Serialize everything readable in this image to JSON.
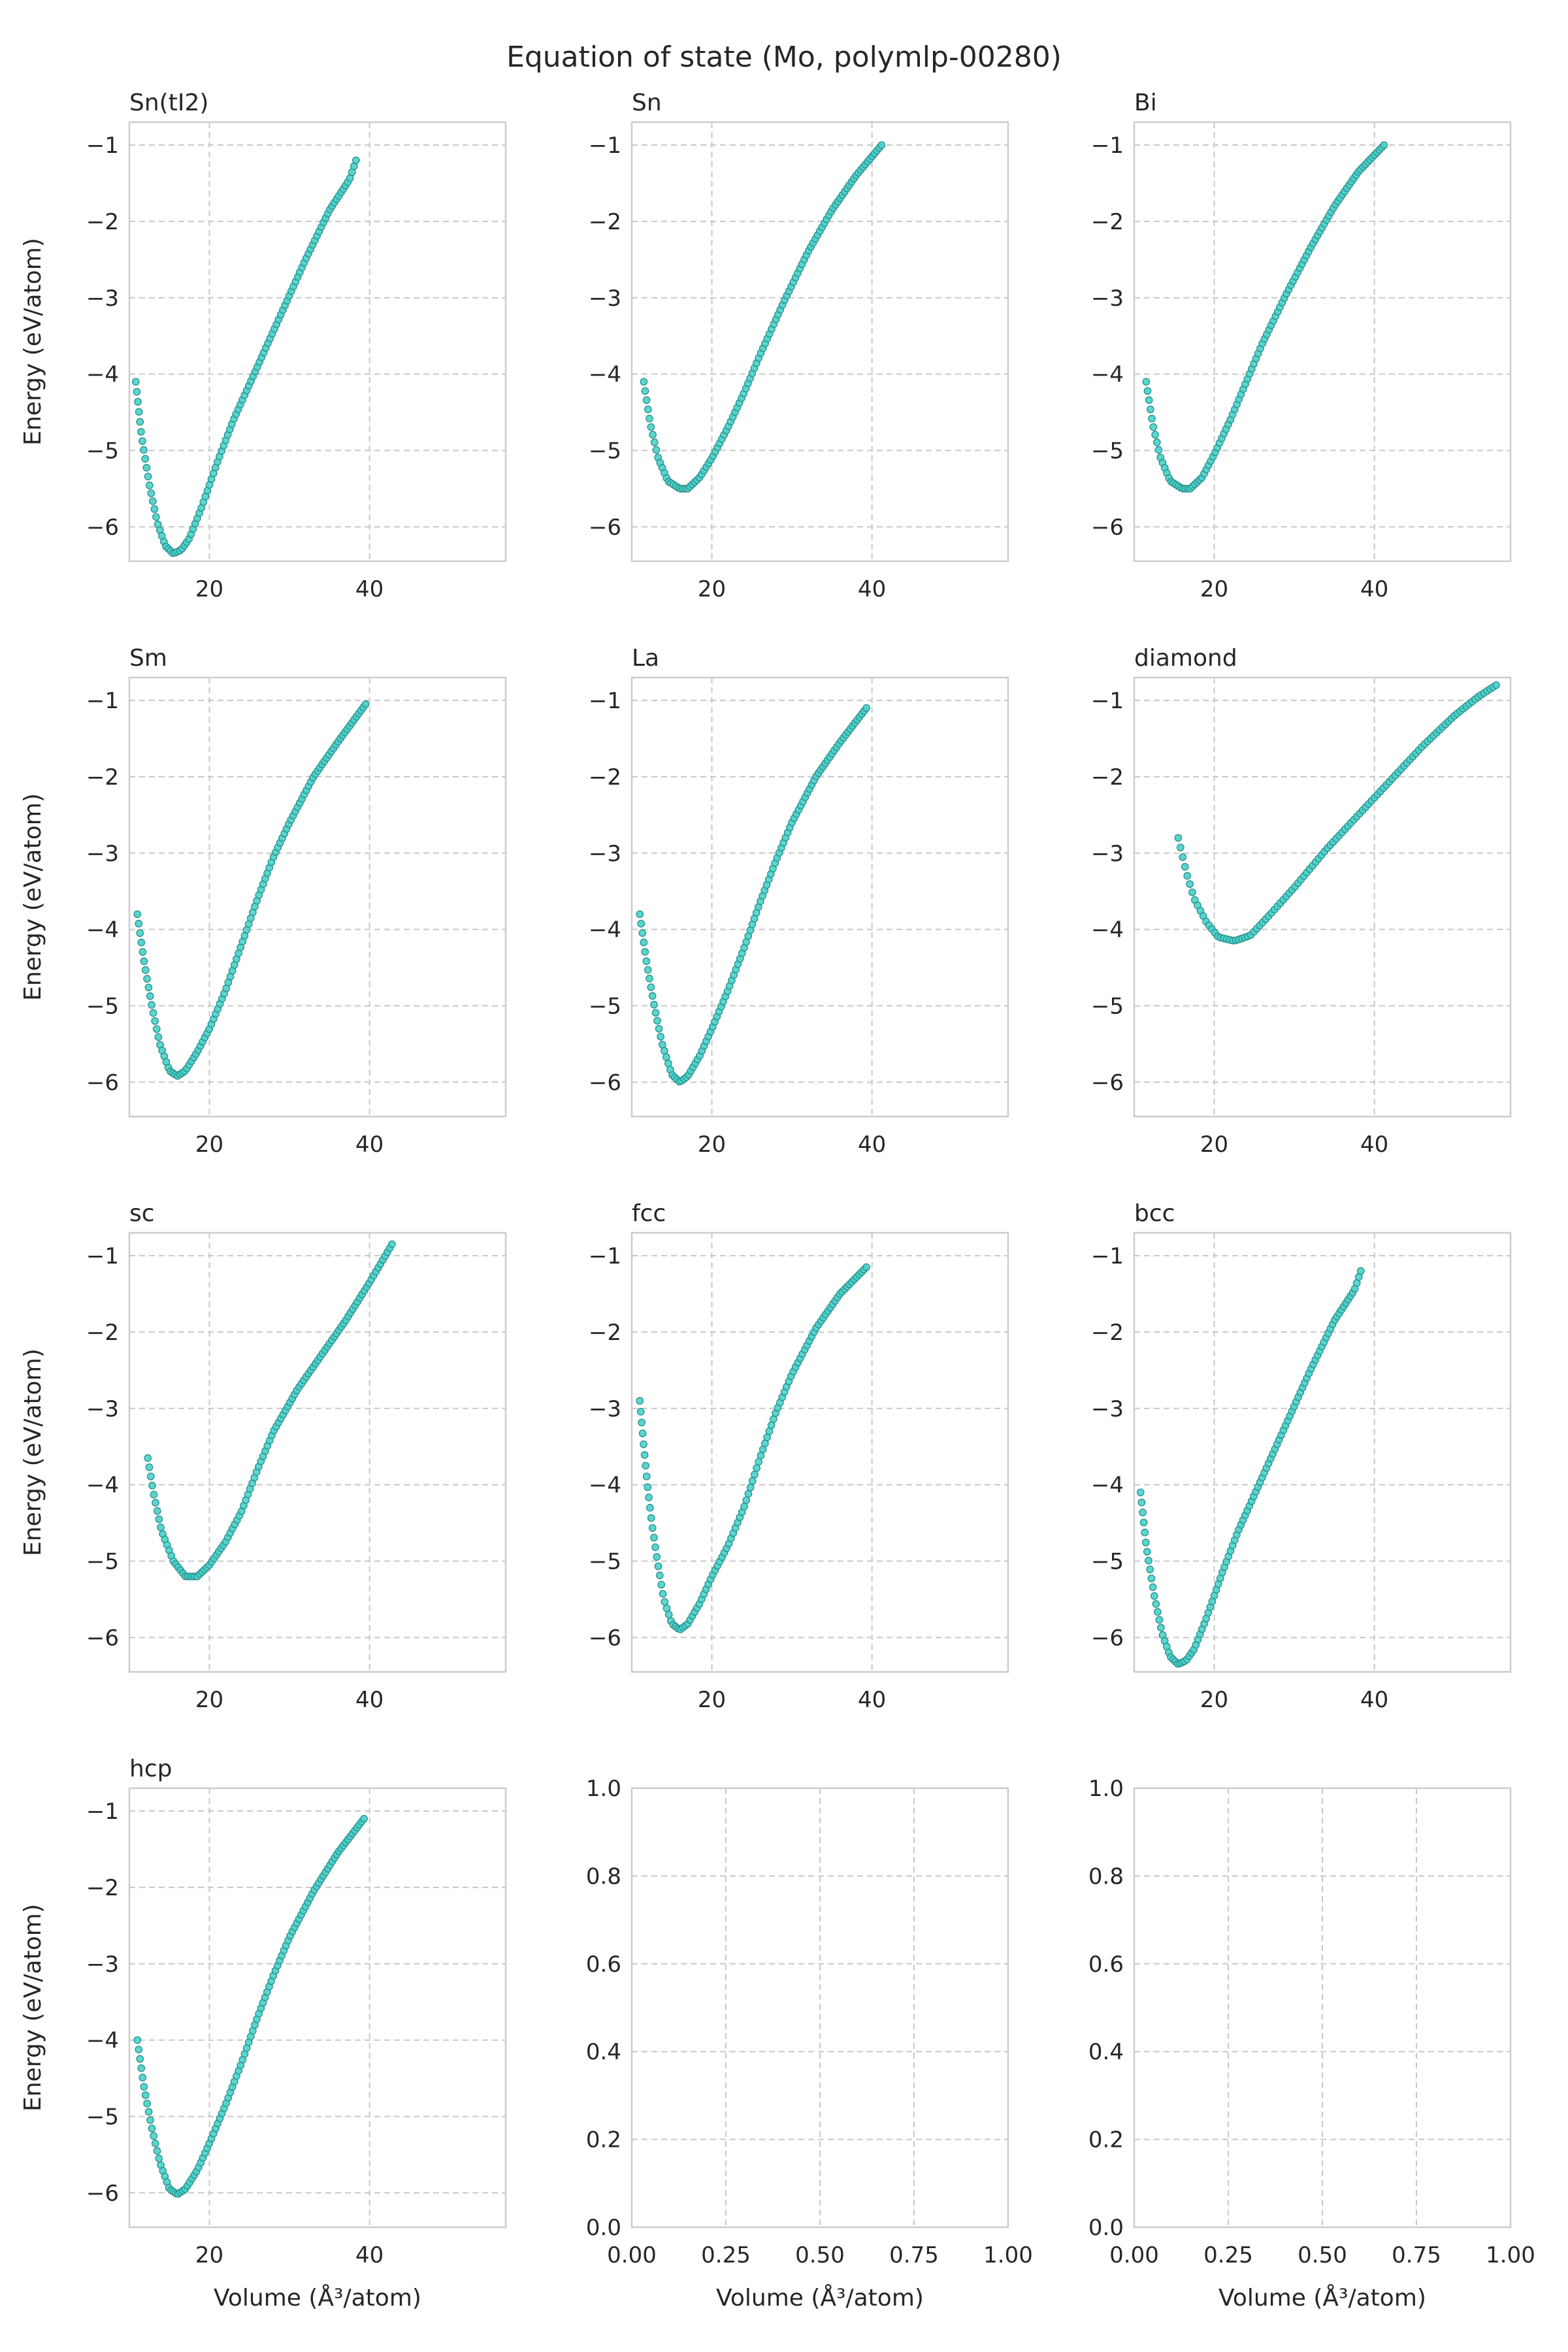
{
  "title": "Equation of state (Mo, polymlp-00280)",
  "colors": {
    "marker": "#48d1cc",
    "marker_edge": "#2a8f88",
    "grid": "#c8c8c8",
    "spine": "#cccccc",
    "text": "#262626"
  },
  "chart_data": [
    {
      "type": "scatter",
      "title": "Sn(tI2)",
      "xlabel": "",
      "ylabel": "Energy (eV/atom)",
      "xlim": [
        10,
        57
      ],
      "ylim": [
        -6.45,
        -0.7
      ],
      "xticks": [
        20,
        40
      ],
      "yticks": [
        -1,
        -2,
        -3,
        -4,
        -5,
        -6
      ],
      "grid": true,
      "anchors": [
        [
          10.8,
          -4.1
        ],
        [
          11.5,
          -4.8
        ],
        [
          12.5,
          -5.45
        ],
        [
          13.5,
          -5.95
        ],
        [
          14.5,
          -6.25
        ],
        [
          15.5,
          -6.35
        ],
        [
          16.5,
          -6.3
        ],
        [
          17.5,
          -6.15
        ],
        [
          19,
          -5.75
        ],
        [
          21,
          -5.15
        ],
        [
          23,
          -4.6
        ],
        [
          26,
          -3.9
        ],
        [
          29,
          -3.2
        ],
        [
          32,
          -2.5
        ],
        [
          35,
          -1.85
        ],
        [
          37.5,
          -1.45
        ],
        [
          38.3,
          -1.2
        ]
      ]
    },
    {
      "type": "scatter",
      "title": "Sn",
      "xlabel": "",
      "ylabel": "",
      "xlim": [
        10,
        57
      ],
      "ylim": [
        -6.45,
        -0.7
      ],
      "xticks": [
        20,
        40
      ],
      "yticks": [
        -1,
        -2,
        -3,
        -4,
        -5,
        -6
      ],
      "grid": true,
      "anchors": [
        [
          11.5,
          -4.1
        ],
        [
          12.3,
          -4.65
        ],
        [
          13.3,
          -5.1
        ],
        [
          14.5,
          -5.4
        ],
        [
          16,
          -5.5
        ],
        [
          17,
          -5.5
        ],
        [
          18.5,
          -5.35
        ],
        [
          20,
          -5.1
        ],
        [
          22,
          -4.7
        ],
        [
          24,
          -4.25
        ],
        [
          26,
          -3.75
        ],
        [
          29,
          -3.05
        ],
        [
          32,
          -2.4
        ],
        [
          35,
          -1.85
        ],
        [
          38,
          -1.4
        ],
        [
          41.2,
          -1.0
        ]
      ]
    },
    {
      "type": "scatter",
      "title": "Bi",
      "xlabel": "",
      "ylabel": "",
      "xlim": [
        10,
        57
      ],
      "ylim": [
        -6.45,
        -0.7
      ],
      "xticks": [
        20,
        40
      ],
      "yticks": [
        -1,
        -2,
        -3,
        -4,
        -5,
        -6
      ],
      "grid": true,
      "anchors": [
        [
          11.5,
          -4.1
        ],
        [
          12.3,
          -4.65
        ],
        [
          13.3,
          -5.1
        ],
        [
          14.5,
          -5.4
        ],
        [
          16,
          -5.5
        ],
        [
          17,
          -5.5
        ],
        [
          18.5,
          -5.35
        ],
        [
          20,
          -5.05
        ],
        [
          22,
          -4.6
        ],
        [
          24,
          -4.1
        ],
        [
          26,
          -3.6
        ],
        [
          29,
          -2.95
        ],
        [
          32,
          -2.35
        ],
        [
          35,
          -1.8
        ],
        [
          38,
          -1.35
        ],
        [
          41.2,
          -1.0
        ]
      ]
    },
    {
      "type": "scatter",
      "title": "Sm",
      "xlabel": "",
      "ylabel": "Energy (eV/atom)",
      "xlim": [
        10,
        57
      ],
      "ylim": [
        -6.45,
        -0.7
      ],
      "xticks": [
        20,
        40
      ],
      "yticks": [
        -1,
        -2,
        -3,
        -4,
        -5,
        -6
      ],
      "grid": true,
      "anchors": [
        [
          11.0,
          -3.8
        ],
        [
          11.8,
          -4.4
        ],
        [
          12.8,
          -5.0
        ],
        [
          13.8,
          -5.5
        ],
        [
          15,
          -5.85
        ],
        [
          16,
          -5.92
        ],
        [
          17,
          -5.85
        ],
        [
          18.5,
          -5.6
        ],
        [
          20,
          -5.3
        ],
        [
          22,
          -4.8
        ],
        [
          24,
          -4.2
        ],
        [
          26,
          -3.6
        ],
        [
          28,
          -3.05
        ],
        [
          30,
          -2.6
        ],
        [
          33,
          -2.0
        ],
        [
          36,
          -1.55
        ],
        [
          39.5,
          -1.05
        ]
      ]
    },
    {
      "type": "scatter",
      "title": "La",
      "xlabel": "",
      "ylabel": "",
      "xlim": [
        10,
        57
      ],
      "ylim": [
        -6.45,
        -0.7
      ],
      "xticks": [
        20,
        40
      ],
      "yticks": [
        -1,
        -2,
        -3,
        -4,
        -5,
        -6
      ],
      "grid": true,
      "anchors": [
        [
          11.0,
          -3.8
        ],
        [
          11.8,
          -4.4
        ],
        [
          12.8,
          -5.0
        ],
        [
          13.8,
          -5.5
        ],
        [
          15,
          -5.9
        ],
        [
          16,
          -6.0
        ],
        [
          17,
          -5.92
        ],
        [
          18.5,
          -5.65
        ],
        [
          20,
          -5.3
        ],
        [
          22,
          -4.8
        ],
        [
          24,
          -4.25
        ],
        [
          26,
          -3.65
        ],
        [
          28,
          -3.1
        ],
        [
          30,
          -2.6
        ],
        [
          33,
          -2.0
        ],
        [
          36,
          -1.55
        ],
        [
          39.3,
          -1.1
        ]
      ]
    },
    {
      "type": "scatter",
      "title": "diamond",
      "xlabel": "",
      "ylabel": "",
      "xlim": [
        10,
        57
      ],
      "ylim": [
        -6.45,
        -0.7
      ],
      "xticks": [
        20,
        40
      ],
      "yticks": [
        -1,
        -2,
        -3,
        -4,
        -5,
        -6
      ],
      "grid": true,
      "anchors": [
        [
          15.5,
          -2.8
        ],
        [
          16.5,
          -3.25
        ],
        [
          17.5,
          -3.6
        ],
        [
          19,
          -3.9
        ],
        [
          20.5,
          -4.1
        ],
        [
          22.5,
          -4.15
        ],
        [
          24.5,
          -4.08
        ],
        [
          27,
          -3.8
        ],
        [
          30,
          -3.45
        ],
        [
          34,
          -2.95
        ],
        [
          38,
          -2.5
        ],
        [
          42,
          -2.05
        ],
        [
          46,
          -1.6
        ],
        [
          50,
          -1.2
        ],
        [
          53,
          -0.95
        ],
        [
          55.2,
          -0.8
        ]
      ]
    },
    {
      "type": "scatter",
      "title": "sc",
      "xlabel": "",
      "ylabel": "Energy (eV/atom)",
      "xlim": [
        10,
        57
      ],
      "ylim": [
        -6.45,
        -0.7
      ],
      "xticks": [
        20,
        40
      ],
      "yticks": [
        -1,
        -2,
        -3,
        -4,
        -5,
        -6
      ],
      "grid": true,
      "anchors": [
        [
          12.3,
          -3.65
        ],
        [
          13,
          -4.1
        ],
        [
          14,
          -4.6
        ],
        [
          15.5,
          -5.0
        ],
        [
          17,
          -5.2
        ],
        [
          18.5,
          -5.2
        ],
        [
          20,
          -5.05
        ],
        [
          22,
          -4.75
        ],
        [
          24,
          -4.35
        ],
        [
          26,
          -3.8
        ],
        [
          28,
          -3.3
        ],
        [
          31,
          -2.75
        ],
        [
          34,
          -2.3
        ],
        [
          37,
          -1.85
        ],
        [
          40,
          -1.35
        ],
        [
          42.8,
          -0.85
        ]
      ]
    },
    {
      "type": "scatter",
      "title": "fcc",
      "xlabel": "",
      "ylabel": "",
      "xlim": [
        10,
        57
      ],
      "ylim": [
        -6.45,
        -0.7
      ],
      "xticks": [
        20,
        40
      ],
      "yticks": [
        -1,
        -2,
        -3,
        -4,
        -5,
        -6
      ],
      "grid": true,
      "anchors": [
        [
          11.0,
          -2.9
        ],
        [
          11.5,
          -3.5
        ],
        [
          12.0,
          -4.05
        ],
        [
          12.5,
          -4.5
        ],
        [
          13.2,
          -5.0
        ],
        [
          14,
          -5.5
        ],
        [
          15,
          -5.82
        ],
        [
          16,
          -5.9
        ],
        [
          17,
          -5.82
        ],
        [
          18.5,
          -5.55
        ],
        [
          20,
          -5.2
        ],
        [
          22,
          -4.8
        ],
        [
          24,
          -4.3
        ],
        [
          26,
          -3.65
        ],
        [
          28,
          -3.05
        ],
        [
          30,
          -2.55
        ],
        [
          33,
          -1.95
        ],
        [
          36,
          -1.5
        ],
        [
          39.3,
          -1.15
        ]
      ]
    },
    {
      "type": "scatter",
      "title": "bcc",
      "xlabel": "",
      "ylabel": "",
      "xlim": [
        10,
        57
      ],
      "ylim": [
        -6.45,
        -0.7
      ],
      "xticks": [
        20,
        40
      ],
      "yticks": [
        -1,
        -2,
        -3,
        -4,
        -5,
        -6
      ],
      "grid": true,
      "anchors": [
        [
          10.8,
          -4.1
        ],
        [
          11.5,
          -4.8
        ],
        [
          12.5,
          -5.45
        ],
        [
          13.5,
          -5.95
        ],
        [
          14.5,
          -6.25
        ],
        [
          15.5,
          -6.35
        ],
        [
          16.5,
          -6.3
        ],
        [
          17.5,
          -6.15
        ],
        [
          19,
          -5.75
        ],
        [
          21,
          -5.15
        ],
        [
          23,
          -4.6
        ],
        [
          26,
          -3.9
        ],
        [
          29,
          -3.2
        ],
        [
          32,
          -2.5
        ],
        [
          35,
          -1.85
        ],
        [
          37.5,
          -1.45
        ],
        [
          38.3,
          -1.2
        ]
      ]
    },
    {
      "type": "scatter",
      "title": "hcp",
      "xlabel": "Volume (Å³/atom)",
      "ylabel": "Energy (eV/atom)",
      "xlim": [
        10,
        57
      ],
      "ylim": [
        -6.45,
        -0.7
      ],
      "xticks": [
        20,
        40
      ],
      "yticks": [
        -1,
        -2,
        -3,
        -4,
        -5,
        -6
      ],
      "grid": true,
      "anchors": [
        [
          11.0,
          -4.0
        ],
        [
          11.8,
          -4.6
        ],
        [
          12.8,
          -5.15
        ],
        [
          13.8,
          -5.6
        ],
        [
          15,
          -5.95
        ],
        [
          16,
          -6.02
        ],
        [
          17,
          -5.95
        ],
        [
          18.5,
          -5.7
        ],
        [
          20,
          -5.35
        ],
        [
          22,
          -4.85
        ],
        [
          24,
          -4.3
        ],
        [
          26,
          -3.7
        ],
        [
          28,
          -3.15
        ],
        [
          30,
          -2.65
        ],
        [
          33,
          -2.05
        ],
        [
          36,
          -1.55
        ],
        [
          39.3,
          -1.1
        ]
      ]
    },
    {
      "type": "scatter",
      "title": "",
      "xlabel": "Volume (Å³/atom)",
      "ylabel": "",
      "xlim": [
        0,
        1
      ],
      "ylim": [
        0,
        1
      ],
      "xticks": [
        0.0,
        0.25,
        0.5,
        0.75,
        1.0
      ],
      "yticks": [
        0.0,
        0.2,
        0.4,
        0.6,
        0.8,
        1.0
      ],
      "grid": true,
      "anchors": []
    },
    {
      "type": "scatter",
      "title": "",
      "xlabel": "Volume (Å³/atom)",
      "ylabel": "",
      "xlim": [
        0,
        1
      ],
      "ylim": [
        0,
        1
      ],
      "xticks": [
        0.0,
        0.25,
        0.5,
        0.75,
        1.0
      ],
      "yticks": [
        0.0,
        0.2,
        0.4,
        0.6,
        0.8,
        1.0
      ],
      "grid": true,
      "anchors": []
    }
  ]
}
